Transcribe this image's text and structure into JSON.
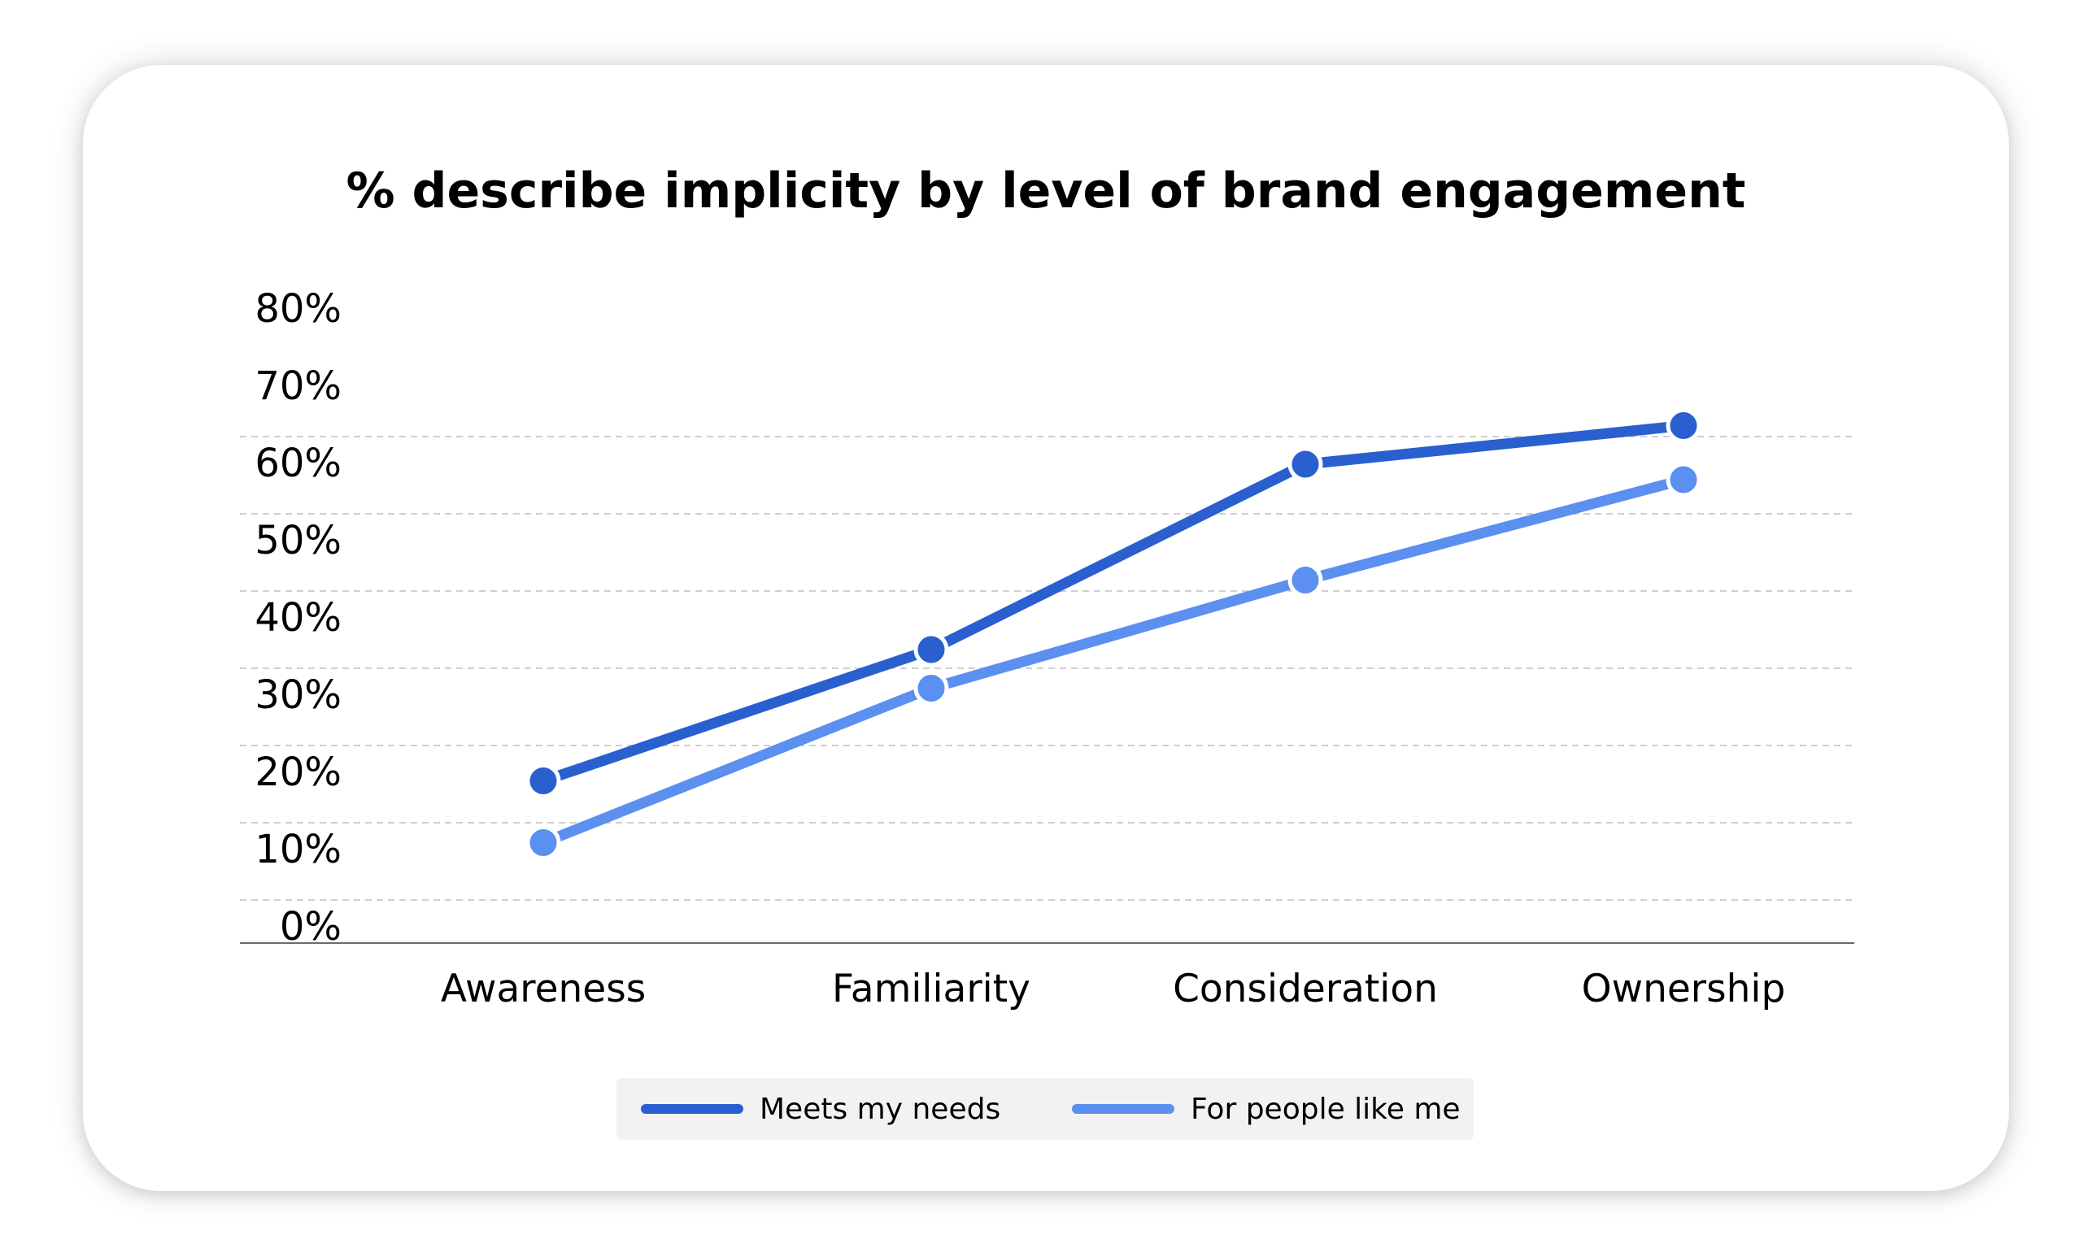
{
  "chart_data": {
    "type": "line",
    "title": "% describe implicity by level of brand engagement",
    "xlabel": "",
    "ylabel": "",
    "categories": [
      "Awareness",
      "Familiarity",
      "Consideration",
      "Ownership"
    ],
    "y_ticks": [
      "0%",
      "10%",
      "20%",
      "30%",
      "40%",
      "50%",
      "60%",
      "70%",
      "80%"
    ],
    "ylim": [
      0,
      80
    ],
    "grid": true,
    "legend_position": "bottom",
    "series": [
      {
        "name": "Meets my needs",
        "values": [
          21,
          38,
          62,
          67
        ],
        "color": "#2a5fcf"
      },
      {
        "name": "For people like me",
        "values": [
          13,
          33,
          47,
          60
        ],
        "color": "#5b8ff0"
      }
    ]
  }
}
